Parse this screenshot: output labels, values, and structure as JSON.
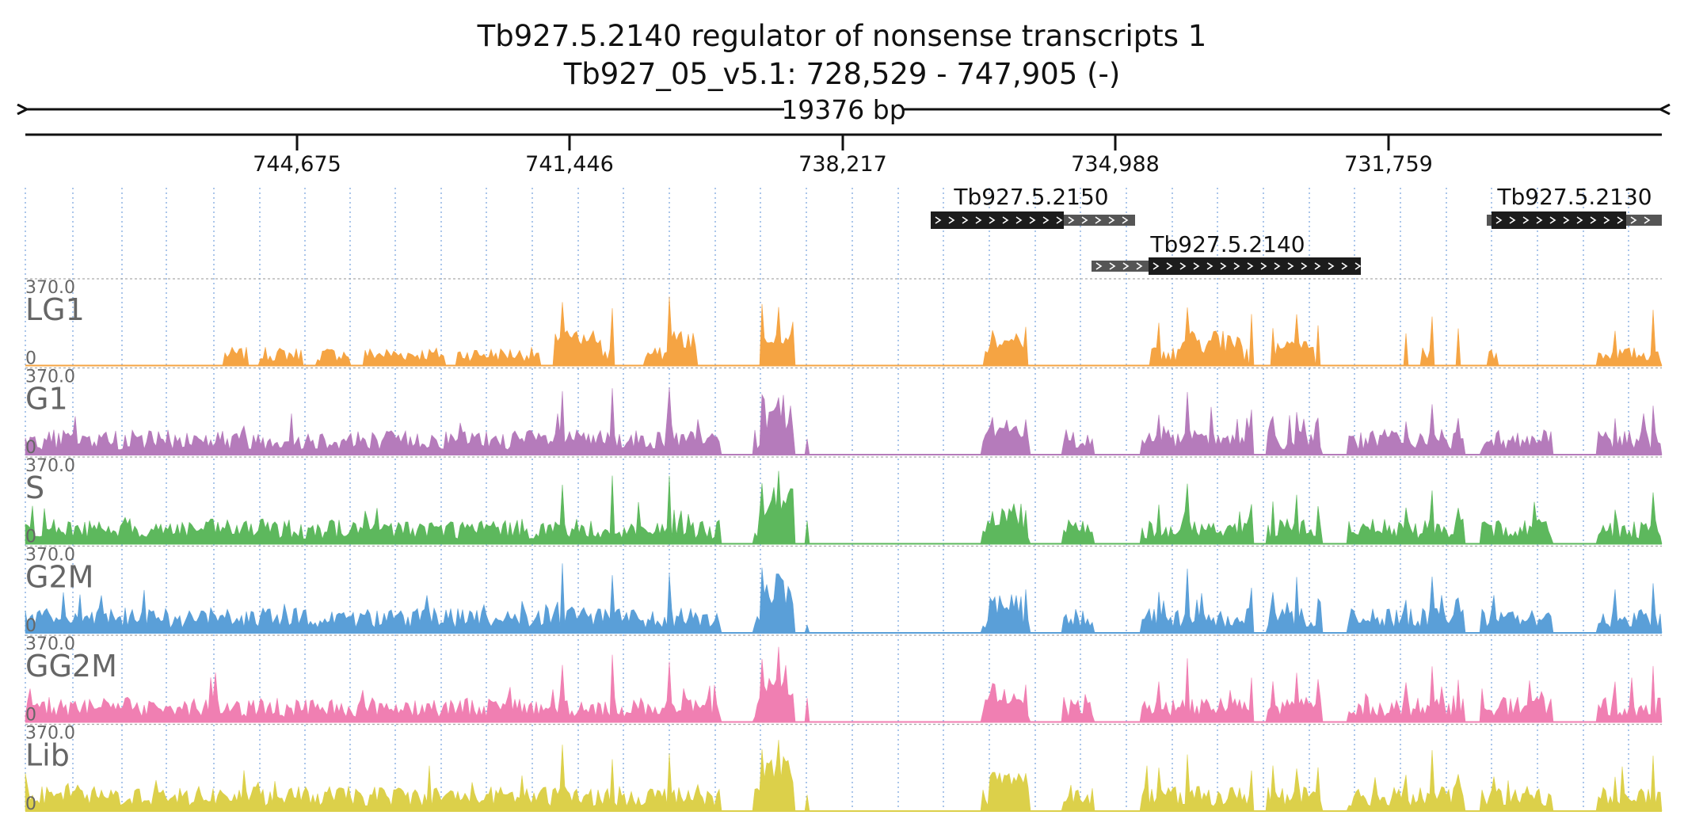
{
  "title": {
    "gene": "Tb927.5.2140  regulator of nonsense transcripts 1",
    "locus": "Tb927_05_v5.1: 728,529 - 747,905 (-)",
    "span": "19376 bp"
  },
  "axis": {
    "ticks": [
      "744,675",
      "741,446",
      "738,217",
      "734,988",
      "731,759"
    ]
  },
  "genes": [
    {
      "name": "Tb927.5.2150",
      "strand": "+"
    },
    {
      "name": "Tb927.5.2140",
      "strand": "+"
    },
    {
      "name": "Tb927.5.2130",
      "strand": "+"
    }
  ],
  "tracks": [
    {
      "name": "LG1",
      "max_label": "370.0",
      "min_label": "0",
      "color": "#f5a443"
    },
    {
      "name": "G1",
      "max_label": "370.0",
      "min_label": "0",
      "color": "#b57bbb"
    },
    {
      "name": "S",
      "max_label": "370.0",
      "min_label": "0",
      "color": "#5db85d"
    },
    {
      "name": "G2M",
      "max_label": "370.0",
      "min_label": "0",
      "color": "#5a9fd8"
    },
    {
      "name": "GG2M",
      "max_label": "370.0",
      "min_label": "0",
      "color": "#f07fb2"
    },
    {
      "name": "Lib",
      "max_label": "370.0",
      "min_label": "0",
      "color": "#dcd04a"
    }
  ],
  "colors": {
    "gene_block": "#1c1c1c",
    "utr_block": "#555555",
    "grid_line": "#8fb4e3",
    "baseline": "#999999"
  }
}
